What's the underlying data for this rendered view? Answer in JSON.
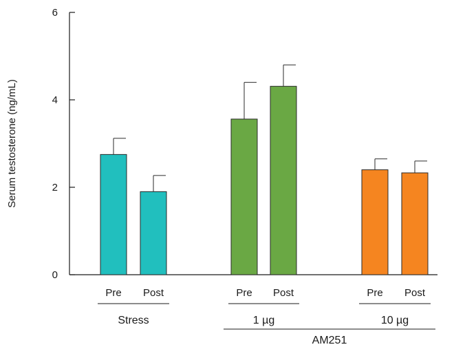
{
  "chart_data": {
    "type": "bar",
    "ylabel": "Serum testosterone (ng/mL)",
    "ylim": [
      0,
      6
    ],
    "yticks": [
      0,
      2,
      4,
      6
    ],
    "groups": [
      {
        "label": "Stress",
        "color": "#21bfbe",
        "bars": [
          {
            "label": "Pre",
            "value": 2.75,
            "error": 0.37
          },
          {
            "label": "Post",
            "value": 1.9,
            "error": 0.37
          }
        ]
      },
      {
        "label": "1 µg",
        "color": "#6aa844",
        "bars": [
          {
            "label": "Pre",
            "value": 3.56,
            "error": 0.84
          },
          {
            "label": "Post",
            "value": 4.31,
            "error": 0.49
          }
        ]
      },
      {
        "label": "10 µg",
        "color": "#f58520",
        "bars": [
          {
            "label": "Pre",
            "value": 2.4,
            "error": 0.25
          },
          {
            "label": "Post",
            "value": 2.33,
            "error": 0.27
          }
        ]
      }
    ],
    "supergroup_label": "AM251",
    "grid": false,
    "legend": "none"
  }
}
